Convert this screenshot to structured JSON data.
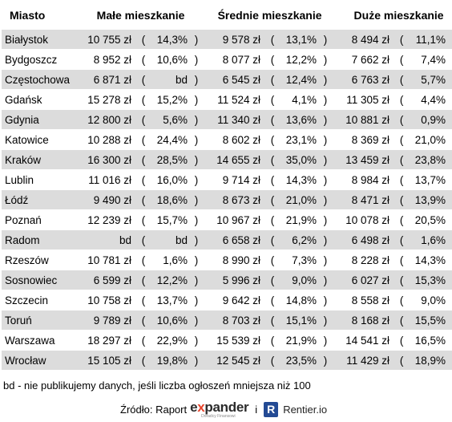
{
  "headers": {
    "city": "Miasto",
    "small": "Małe mieszkanie",
    "medium": "Średnie mieszkanie",
    "large": "Duże mieszkanie"
  },
  "rows": [
    {
      "city": "Białystok",
      "small": {
        "price": "10 755 zł",
        "pct": "14,3%"
      },
      "medium": {
        "price": "9 578 zł",
        "pct": "13,1%"
      },
      "large": {
        "price": "8 494 zł",
        "pct": "11,1%"
      }
    },
    {
      "city": "Bydgoszcz",
      "small": {
        "price": "8 952 zł",
        "pct": "10,6%"
      },
      "medium": {
        "price": "8 077 zł",
        "pct": "12,2%"
      },
      "large": {
        "price": "7 662 zł",
        "pct": "7,4%"
      }
    },
    {
      "city": "Częstochowa",
      "small": {
        "price": "6 871 zł",
        "pct": "bd"
      },
      "medium": {
        "price": "6 545 zł",
        "pct": "12,4%"
      },
      "large": {
        "price": "6 763 zł",
        "pct": "5,7%"
      }
    },
    {
      "city": "Gdańsk",
      "small": {
        "price": "15 278 zł",
        "pct": "15,2%"
      },
      "medium": {
        "price": "11 524 zł",
        "pct": "4,1%"
      },
      "large": {
        "price": "11 305 zł",
        "pct": "4,4%"
      }
    },
    {
      "city": "Gdynia",
      "small": {
        "price": "12 800 zł",
        "pct": "5,6%"
      },
      "medium": {
        "price": "11 340 zł",
        "pct": "13,6%"
      },
      "large": {
        "price": "10 881 zł",
        "pct": "0,9%"
      }
    },
    {
      "city": "Katowice",
      "small": {
        "price": "10 288 zł",
        "pct": "24,4%"
      },
      "medium": {
        "price": "8 602 zł",
        "pct": "23,1%"
      },
      "large": {
        "price": "8 369 zł",
        "pct": "21,0%"
      }
    },
    {
      "city": "Kraków",
      "small": {
        "price": "16 300 zł",
        "pct": "28,5%"
      },
      "medium": {
        "price": "14 655 zł",
        "pct": "35,0%"
      },
      "large": {
        "price": "13 459 zł",
        "pct": "23,8%"
      }
    },
    {
      "city": "Lublin",
      "small": {
        "price": "11 016 zł",
        "pct": "16,0%"
      },
      "medium": {
        "price": "9 714 zł",
        "pct": "14,3%"
      },
      "large": {
        "price": "8 984 zł",
        "pct": "13,7%"
      }
    },
    {
      "city": "Łódź",
      "small": {
        "price": "9 490 zł",
        "pct": "18,6%"
      },
      "medium": {
        "price": "8 673 zł",
        "pct": "21,0%"
      },
      "large": {
        "price": "8 471 zł",
        "pct": "13,9%"
      }
    },
    {
      "city": "Poznań",
      "small": {
        "price": "12 239 zł",
        "pct": "15,7%"
      },
      "medium": {
        "price": "10 967 zł",
        "pct": "21,9%"
      },
      "large": {
        "price": "10 078 zł",
        "pct": "20,5%"
      }
    },
    {
      "city": "Radom",
      "small": {
        "price": "bd",
        "pct": "bd"
      },
      "medium": {
        "price": "6 658 zł",
        "pct": "6,2%"
      },
      "large": {
        "price": "6 498 zł",
        "pct": "1,6%"
      }
    },
    {
      "city": "Rzeszów",
      "small": {
        "price": "10 781 zł",
        "pct": "1,6%"
      },
      "medium": {
        "price": "8 990 zł",
        "pct": "7,3%"
      },
      "large": {
        "price": "8 228 zł",
        "pct": "14,3%"
      }
    },
    {
      "city": "Sosnowiec",
      "small": {
        "price": "6 599 zł",
        "pct": "12,2%"
      },
      "medium": {
        "price": "5 996 zł",
        "pct": "9,0%"
      },
      "large": {
        "price": "6 027 zł",
        "pct": "15,3%"
      }
    },
    {
      "city": "Szczecin",
      "small": {
        "price": "10 758 zł",
        "pct": "13,7%"
      },
      "medium": {
        "price": "9 642 zł",
        "pct": "14,8%"
      },
      "large": {
        "price": "8 558 zł",
        "pct": "9,0%"
      }
    },
    {
      "city": "Toruń",
      "small": {
        "price": "9 789 zł",
        "pct": "10,6%"
      },
      "medium": {
        "price": "8 703 zł",
        "pct": "15,1%"
      },
      "large": {
        "price": "8 168 zł",
        "pct": "15,5%"
      }
    },
    {
      "city": "Warszawa",
      "small": {
        "price": "18 297 zł",
        "pct": "22,9%"
      },
      "medium": {
        "price": "15 539 zł",
        "pct": "21,9%"
      },
      "large": {
        "price": "14 541 zł",
        "pct": "16,5%"
      }
    },
    {
      "city": "Wrocław",
      "small": {
        "price": "15 105 zł",
        "pct": "19,8%"
      },
      "medium": {
        "price": "12 545 zł",
        "pct": "23,5%"
      },
      "large": {
        "price": "11 429 zł",
        "pct": "18,9%"
      }
    }
  ],
  "paren_open": "(",
  "paren_close": ")",
  "note": "bd - nie publikujemy danych, jeśli liczba ogłoszeń mniejsza niż 100",
  "source": {
    "label": "Źródło: Raport",
    "expander_pre": "e",
    "expander_x": "x",
    "expander_post": "pander",
    "expander_sub": "Doradcy Finansowi",
    "separator": "i",
    "r_logo": "R",
    "rentier": "Rentier.io"
  },
  "colors": {
    "row_shade": "#dcdcdc",
    "expander_accent": "#e8432b",
    "rentier_blue": "#234a94"
  }
}
